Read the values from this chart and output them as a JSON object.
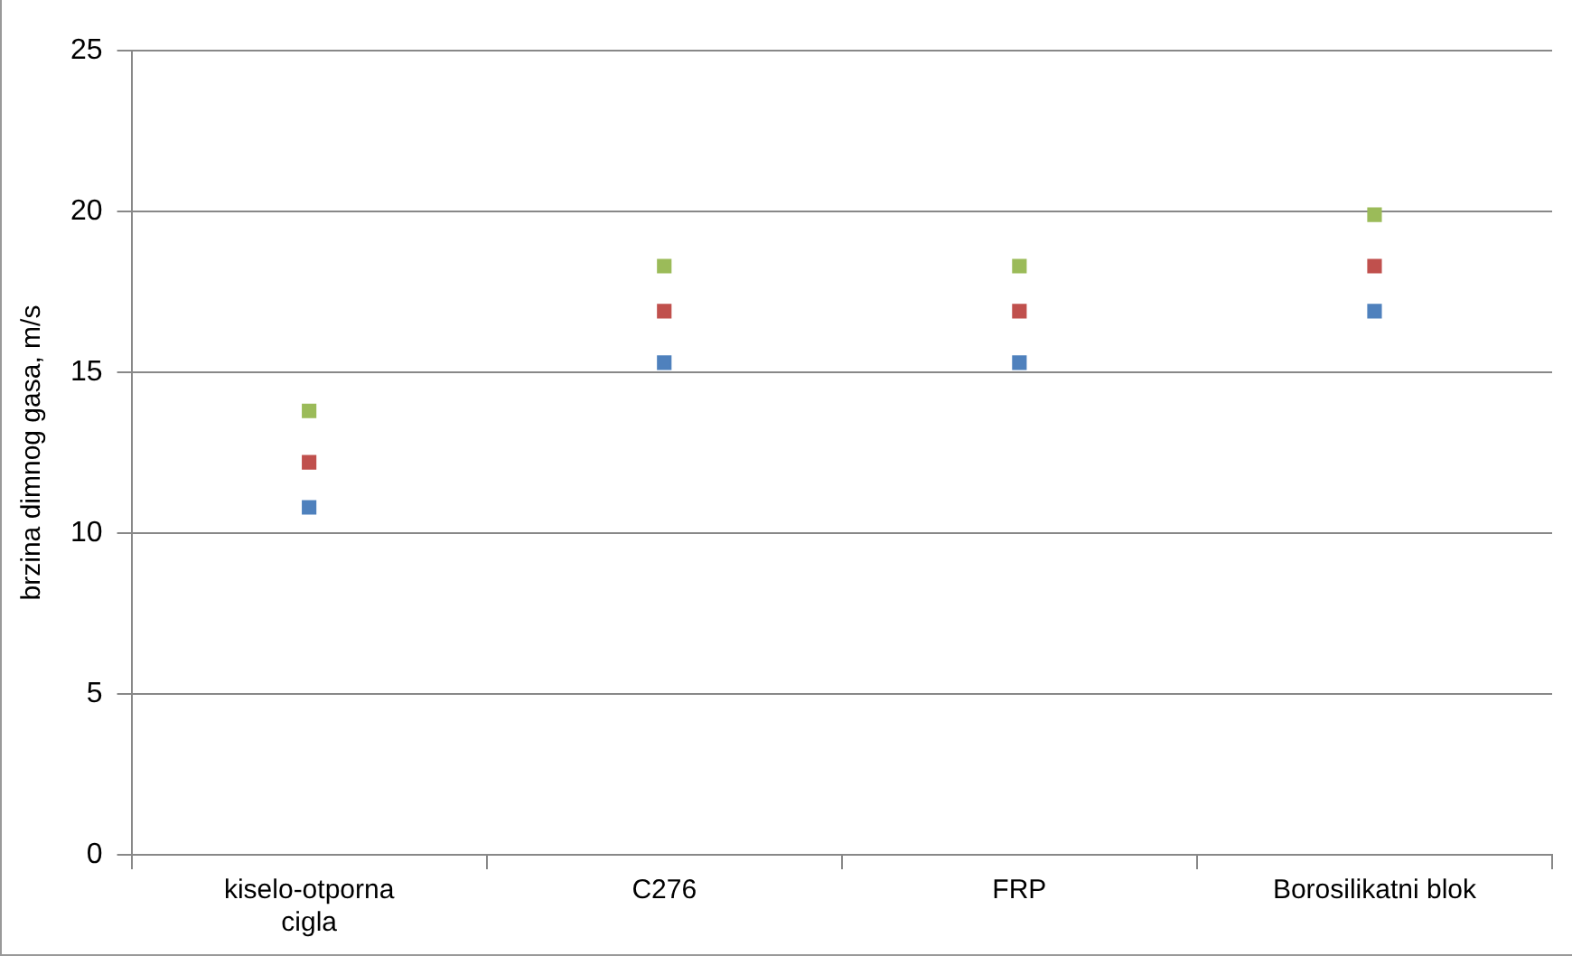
{
  "chart_data": {
    "type": "scatter",
    "ylabel": "brzina dimnog gasa, m/s",
    "categories": [
      "kiselo-otporna cigla",
      "C276",
      "FRP",
      "Borosilikatni blok"
    ],
    "series": [
      {
        "color": "#9bbb59",
        "marker": "square",
        "values": [
          13.8,
          18.3,
          18.3,
          19.9
        ]
      },
      {
        "color": "#c0504d",
        "marker": "square",
        "values": [
          12.2,
          16.9,
          16.9,
          18.3
        ]
      },
      {
        "color": "#4f81bd",
        "marker": "square",
        "values": [
          10.8,
          15.3,
          15.3,
          16.9
        ]
      }
    ],
    "ylim": [
      0,
      25
    ],
    "yticks": [
      0,
      5,
      10,
      15,
      20,
      25
    ],
    "grid": "y",
    "legend": false
  }
}
